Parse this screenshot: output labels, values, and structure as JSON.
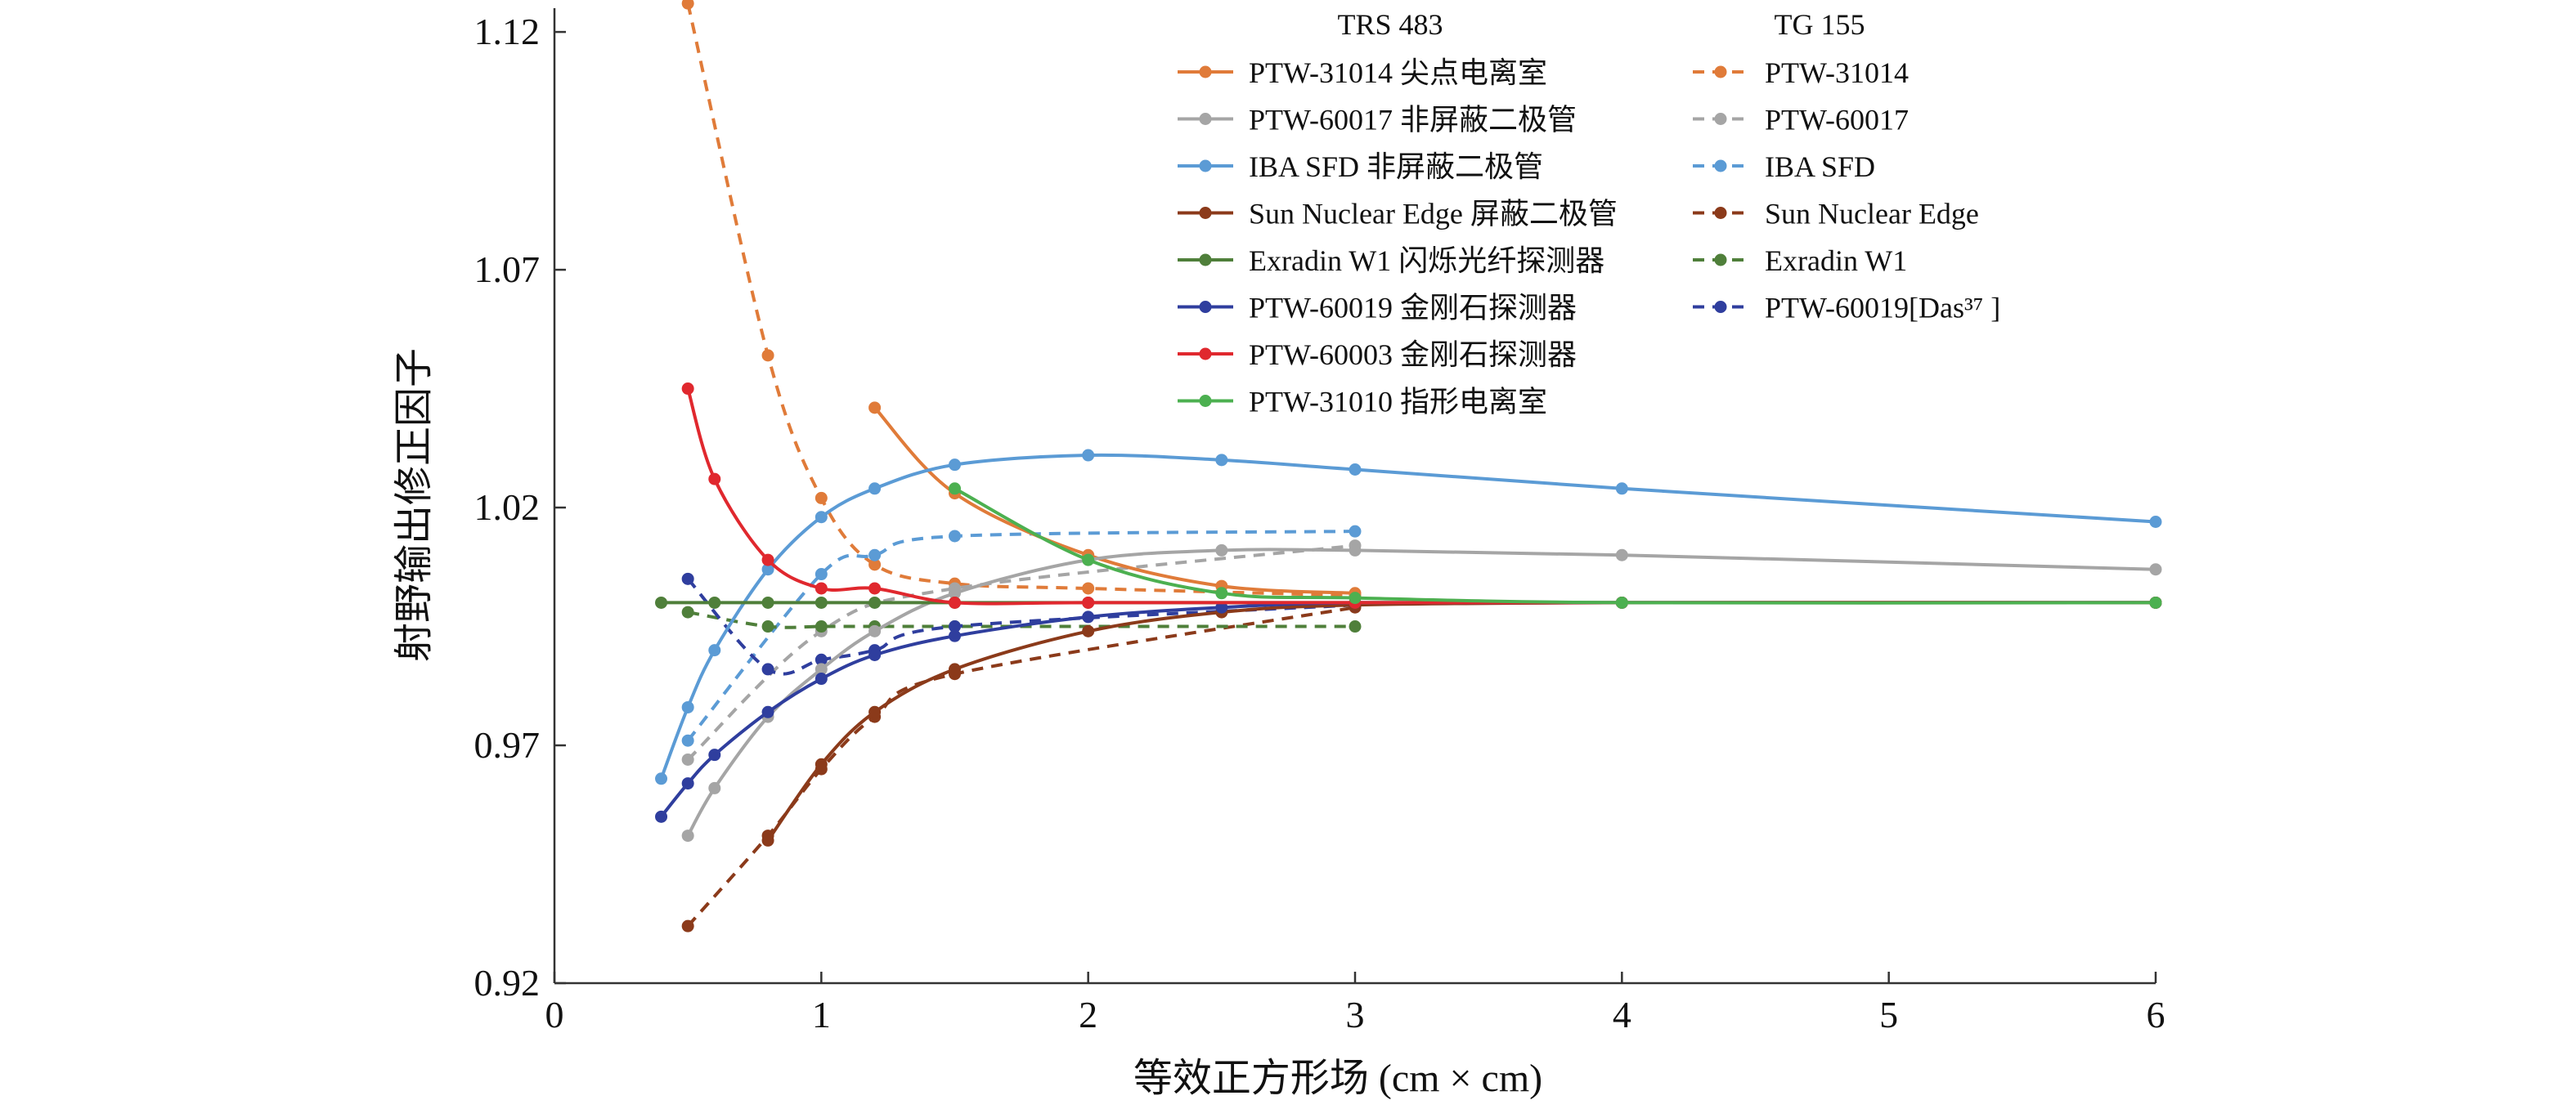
{
  "chart_data": {
    "type": "line",
    "title": "",
    "xlabel": "等效正方形场 (cm × cm)",
    "ylabel": "射野输出修正因子",
    "xlim": [
      0,
      6
    ],
    "ylim": [
      0.92,
      1.125
    ],
    "xticks": [
      0,
      1,
      2,
      3,
      4,
      5,
      6
    ],
    "yticks": [
      0.92,
      0.97,
      1.02,
      1.07,
      1.12
    ],
    "ytick_labels": [
      "0.92",
      "0.97",
      "1.02",
      "1.07",
      "1.12"
    ],
    "grid": false,
    "legend": {
      "position": "top-right",
      "headers": [
        "TRS 483",
        "TG 155"
      ]
    },
    "series": [
      {
        "name": "PTW-31014 尖点电离室",
        "group": "TRS 483",
        "color": "#E07B39",
        "dash": false,
        "x": [
          1.2,
          1.5,
          2.0,
          2.5,
          3.0
        ],
        "y": [
          1.041,
          1.023,
          1.01,
          1.0035,
          1.002
        ]
      },
      {
        "name": "PTW-60017 非屏蔽二极管",
        "group": "TRS 483",
        "color": "#A5A5A5",
        "dash": false,
        "x": [
          0.5,
          0.6,
          0.8,
          1.0,
          1.2,
          1.5,
          2.0,
          2.5,
          3.0,
          4.0,
          6.0
        ],
        "y": [
          0.951,
          0.961,
          0.976,
          0.986,
          0.994,
          1.002,
          1.009,
          1.011,
          1.011,
          1.01,
          1.007
        ]
      },
      {
        "name": "IBA SFD 非屏蔽二极管",
        "group": "TRS 483",
        "color": "#5B9BD5",
        "dash": false,
        "x": [
          0.4,
          0.5,
          0.6,
          0.8,
          1.0,
          1.2,
          1.5,
          2.0,
          2.5,
          3.0,
          4.0,
          6.0
        ],
        "y": [
          0.963,
          0.978,
          0.99,
          1.007,
          1.018,
          1.024,
          1.029,
          1.031,
          1.03,
          1.028,
          1.024,
          1.017
        ]
      },
      {
        "name": "Sun Nuclear Edge 屏蔽二极管",
        "group": "TRS 483",
        "color": "#8B3A1A",
        "dash": false,
        "x": [
          0.8,
          1.0,
          1.2,
          1.5,
          2.0,
          2.5,
          3.0,
          4.0,
          6.0
        ],
        "y": [
          0.95,
          0.966,
          0.977,
          0.986,
          0.994,
          0.998,
          0.9995,
          1.0,
          1.0
        ]
      },
      {
        "name": "Exradin W1 闪烁光纤探测器",
        "group": "TRS 483",
        "color": "#4F7F3A",
        "dash": false,
        "x": [
          0.4,
          0.6,
          0.8,
          1.0,
          1.2,
          1.5,
          2.0,
          3.0,
          4.0,
          6.0
        ],
        "y": [
          1.0,
          1.0,
          1.0,
          1.0,
          1.0,
          1.0,
          1.0,
          1.0,
          1.0,
          1.0
        ]
      },
      {
        "name": "PTW-60019 金刚石探测器",
        "group": "TRS 483",
        "color": "#2F3E9E",
        "dash": false,
        "x": [
          0.4,
          0.5,
          0.6,
          0.8,
          1.0,
          1.2,
          1.5,
          2.0,
          2.5,
          3.0,
          4.0,
          6.0
        ],
        "y": [
          0.955,
          0.962,
          0.968,
          0.977,
          0.984,
          0.989,
          0.993,
          0.997,
          0.999,
          1.0,
          1.0,
          1.0
        ]
      },
      {
        "name": "PTW-60003 金刚石探测器",
        "group": "TRS 483",
        "color": "#E0282E",
        "dash": false,
        "x": [
          0.5,
          0.6,
          0.8,
          1.0,
          1.2,
          1.5,
          2.0,
          3.0,
          4.0,
          6.0
        ],
        "y": [
          1.045,
          1.026,
          1.009,
          1.003,
          1.003,
          1.0,
          1.0,
          1.0,
          1.0,
          1.0
        ]
      },
      {
        "name": "PTW-31010 指形电离室",
        "group": "TRS 483",
        "color": "#4CB050",
        "dash": false,
        "x": [
          1.5,
          2.0,
          2.5,
          3.0,
          4.0,
          6.0
        ],
        "y": [
          1.024,
          1.009,
          1.002,
          1.001,
          1.0,
          1.0
        ]
      },
      {
        "name": "PTW-31014",
        "group": "TG 155",
        "color": "#E07B39",
        "dash": true,
        "x": [
          0.5,
          0.8,
          1.0,
          1.2,
          1.5,
          2.0,
          3.0
        ],
        "y": [
          1.126,
          1.052,
          1.022,
          1.008,
          1.004,
          1.003,
          1.0015
        ]
      },
      {
        "name": "PTW-60017",
        "group": "TG 155",
        "color": "#A5A5A5",
        "dash": true,
        "x": [
          0.5,
          1.0,
          1.5,
          3.0
        ],
        "y": [
          0.967,
          0.994,
          1.003,
          1.012
        ]
      },
      {
        "name": "IBA SFD",
        "group": "TG 155",
        "color": "#5B9BD5",
        "dash": true,
        "x": [
          0.5,
          1.0,
          1.2,
          1.5,
          3.0
        ],
        "y": [
          0.971,
          1.006,
          1.01,
          1.014,
          1.015
        ]
      },
      {
        "name": "Sun Nuclear Edge",
        "group": "TG 155",
        "color": "#8B3A1A",
        "dash": true,
        "x": [
          0.5,
          0.8,
          1.0,
          1.2,
          1.5,
          3.0
        ],
        "y": [
          0.932,
          0.951,
          0.965,
          0.976,
          0.985,
          0.999
        ]
      },
      {
        "name": "Exradin W1",
        "group": "TG 155",
        "color": "#4F7F3A",
        "dash": true,
        "x": [
          0.5,
          0.8,
          1.0,
          1.2,
          1.5,
          3.0
        ],
        "y": [
          0.998,
          0.995,
          0.995,
          0.995,
          0.995,
          0.995
        ]
      },
      {
        "name": "PTW-60019[Das³⁷ ]",
        "group": "TG 155",
        "color": "#2F3E9E",
        "dash": true,
        "x": [
          0.5,
          0.8,
          1.0,
          1.2,
          1.5,
          3.0
        ],
        "y": [
          1.005,
          0.986,
          0.988,
          0.99,
          0.995,
          0.9995
        ]
      }
    ]
  }
}
